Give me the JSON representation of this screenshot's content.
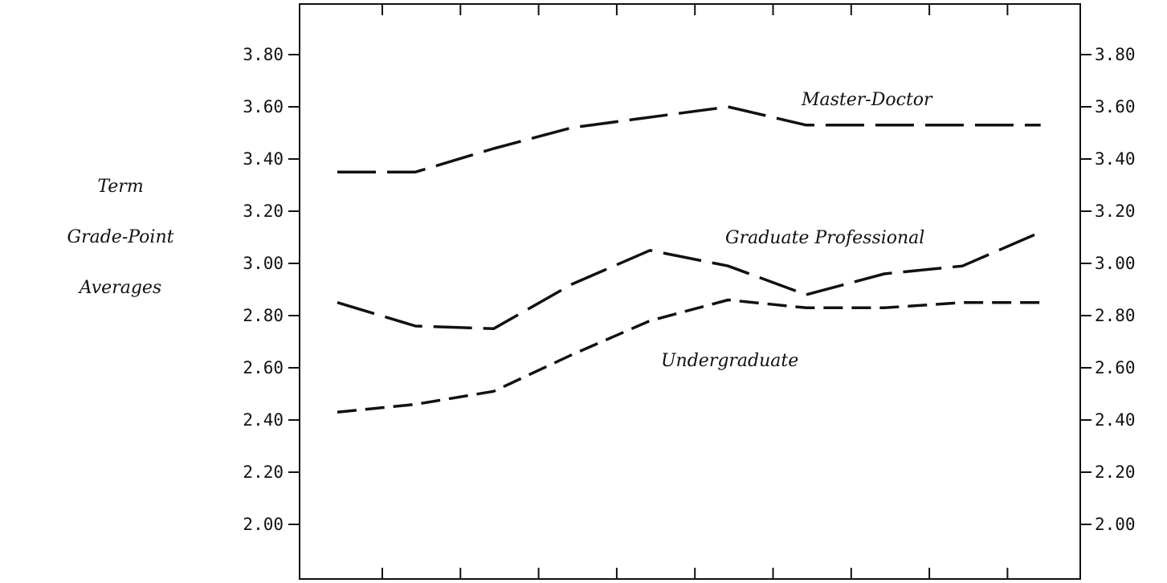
{
  "chart_data": {
    "type": "line",
    "title": "",
    "xlabel": "",
    "ylabel_lines": [
      "Term",
      "Grade-Point",
      "Averages"
    ],
    "x": [
      1,
      2,
      3,
      4,
      5,
      6,
      7,
      8,
      9,
      10
    ],
    "ylim": [
      1.85,
      4.0
    ],
    "y_ticks": [
      "2.00",
      "2.20",
      "2.40",
      "2.60",
      "2.80",
      "3.00",
      "3.20",
      "3.40",
      "3.60",
      "3.80"
    ],
    "y_tick_values": [
      2.0,
      2.2,
      2.4,
      2.6,
      2.8,
      3.0,
      3.2,
      3.4,
      3.6,
      3.8
    ],
    "grid": false,
    "series": [
      {
        "name": "Master-Doctor",
        "values": [
          3.35,
          3.35,
          3.44,
          3.52,
          3.56,
          3.6,
          3.53,
          3.53,
          3.53,
          3.53
        ],
        "dash": "long"
      },
      {
        "name": "Graduate Professional",
        "values": [
          2.85,
          2.76,
          2.75,
          2.92,
          3.05,
          2.99,
          2.88,
          2.96,
          2.99,
          3.12
        ],
        "dash": "long"
      },
      {
        "name": "Undergraduate",
        "values": [
          2.43,
          2.46,
          2.51,
          2.65,
          2.78,
          2.86,
          2.83,
          2.83,
          2.85,
          2.85
        ],
        "dash": "short"
      }
    ]
  }
}
